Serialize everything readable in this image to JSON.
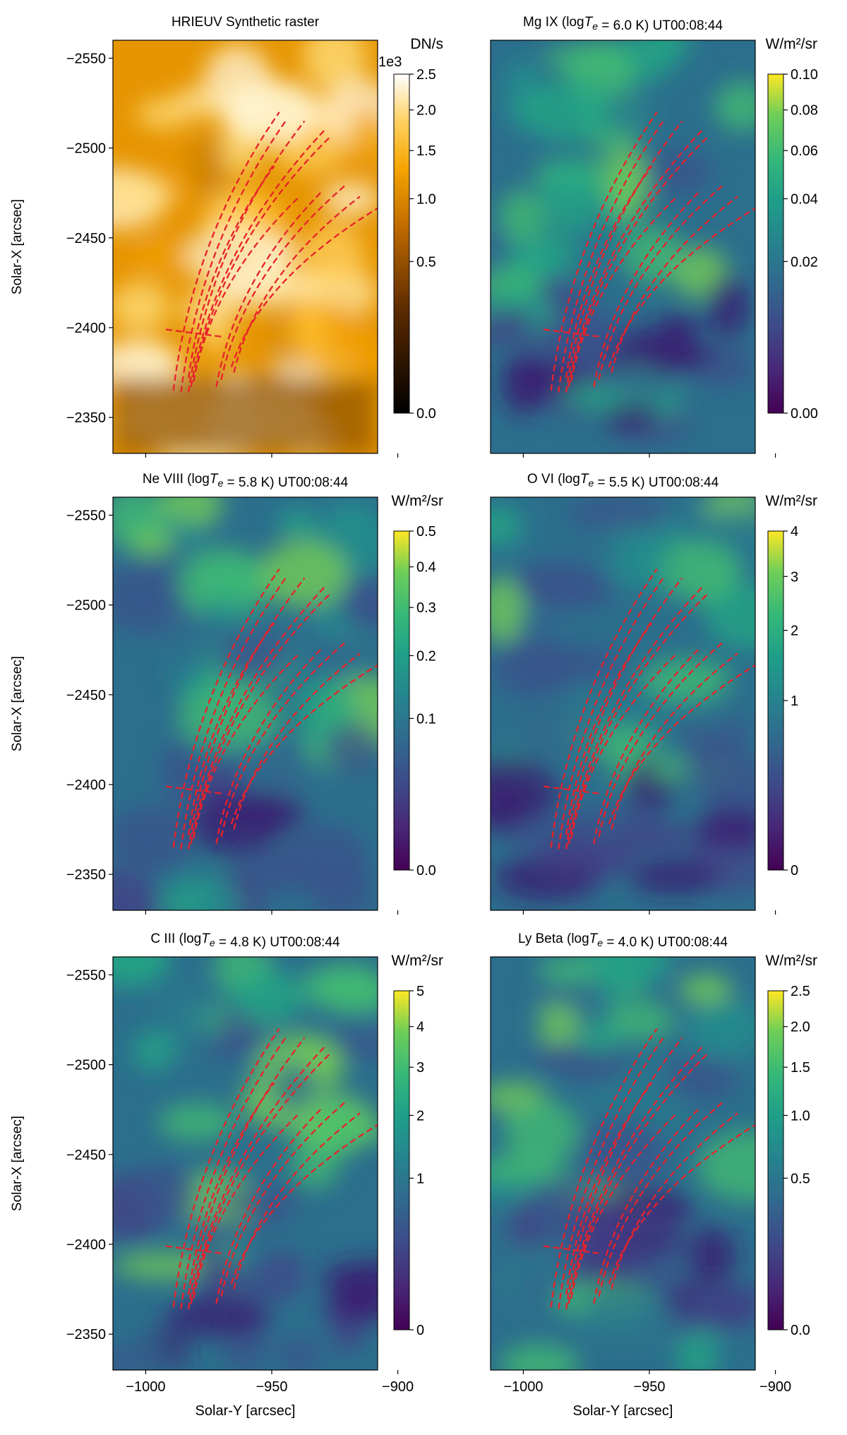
{
  "figure": {
    "shared_xlabel": "Solar-Y [arcsec]",
    "shared_ylabel": "Solar-X [arcsec]"
  },
  "chart_data": [
    {
      "type": "heatmap",
      "title": "HRIEUV Synthetic raster",
      "xlabel": "",
      "ylabel": "Solar-X [arcsec]",
      "xlim": [
        -1013,
        -908
      ],
      "ylim": [
        -2330,
        -2560
      ],
      "xticks": [],
      "yticks": [
        -2550,
        -2500,
        -2450,
        -2400,
        -2350
      ],
      "colormap": "afmhot",
      "colorbar": {
        "label": "DN/s",
        "offset_text": "1e3",
        "scale": "power",
        "ticks": [
          0.0,
          0.5,
          1.0,
          1.5,
          2.0,
          2.5
        ],
        "range": [
          0,
          2.5
        ]
      },
      "bright_regions": [
        {
          "x": -950,
          "y": -2520,
          "level": 0.95
        },
        {
          "x": -965,
          "y": -2440,
          "level": 0.75
        },
        {
          "x": -990,
          "y": -2355,
          "level": 0.55
        }
      ]
    },
    {
      "type": "heatmap",
      "title": "Mg IX (log$T_e$ = 6.0 K) UT00:08:44",
      "xlabel": "",
      "ylabel": "",
      "xlim": [
        -1013,
        -908
      ],
      "ylim": [
        -2330,
        -2560
      ],
      "xticks": [],
      "yticks": [],
      "colormap": "viridis",
      "colorbar": {
        "label": "W/m²/sr",
        "scale": "power",
        "ticks": [
          0.0,
          0.02,
          0.04,
          0.06,
          0.08,
          0.1
        ],
        "range": [
          0,
          0.1
        ]
      }
    },
    {
      "type": "heatmap",
      "title": "Ne VIII (log$T_e$ = 5.8 K) UT00:08:44",
      "xlabel": "",
      "ylabel": "Solar-X [arcsec]",
      "xlim": [
        -1013,
        -908
      ],
      "ylim": [
        -2330,
        -2560
      ],
      "xticks": [],
      "yticks": [
        -2550,
        -2500,
        -2450,
        -2400,
        -2350
      ],
      "colormap": "viridis",
      "colorbar": {
        "label": "W/m²/sr",
        "scale": "power",
        "ticks": [
          0.0,
          0.1,
          0.2,
          0.3,
          0.4,
          0.5
        ],
        "range": [
          0,
          0.5
        ]
      }
    },
    {
      "type": "heatmap",
      "title": "O VI (log$T_e$ = 5.5 K) UT00:08:44",
      "xlabel": "",
      "ylabel": "",
      "xlim": [
        -1013,
        -908
      ],
      "ylim": [
        -2330,
        -2560
      ],
      "xticks": [],
      "yticks": [],
      "colormap": "viridis",
      "colorbar": {
        "label": "W/m²/sr",
        "scale": "power",
        "ticks": [
          0.0,
          1.0,
          2.0,
          3.0,
          4.0
        ],
        "range": [
          0,
          4.0
        ]
      }
    },
    {
      "type": "heatmap",
      "title": "C III (log$T_e$ = 4.8 K) UT00:08:44",
      "xlabel": "Solar-Y [arcsec]",
      "ylabel": "Solar-X [arcsec]",
      "xlim": [
        -1013,
        -908
      ],
      "ylim": [
        -2330,
        -2560
      ],
      "xticks": [
        -1000,
        -950,
        -900
      ],
      "yticks": [
        -2550,
        -2500,
        -2450,
        -2400,
        -2350
      ],
      "colormap": "viridis",
      "colorbar": {
        "label": "W/m²/sr",
        "scale": "power",
        "ticks": [
          0,
          1,
          2,
          3,
          4,
          5
        ],
        "range": [
          0,
          5
        ]
      }
    },
    {
      "type": "heatmap",
      "title": "Ly Beta (log$T_e$ = 4.0 K) UT00:08:44",
      "xlabel": "Solar-Y [arcsec]",
      "ylabel": "",
      "xlim": [
        -1013,
        -908
      ],
      "ylim": [
        -2330,
        -2560
      ],
      "xticks": [
        -1000,
        -950,
        -900
      ],
      "yticks": [],
      "colormap": "viridis",
      "colorbar": {
        "label": "W/m²/sr",
        "scale": "power",
        "ticks": [
          0.0,
          0.5,
          1.0,
          1.5,
          2.0,
          2.5
        ],
        "range": [
          0,
          2.5
        ]
      }
    }
  ],
  "overlay": {
    "type": "dashed_line_traces",
    "color": "#e8222a",
    "loops": [
      {
        "start": [
          -989,
          -2365
        ],
        "end": [
          -947,
          -2520
        ]
      },
      {
        "start": [
          -986,
          -2364
        ],
        "end": [
          -944,
          -2516
        ]
      },
      {
        "start": [
          -983,
          -2364
        ],
        "end": [
          -937,
          -2515
        ]
      },
      {
        "start": [
          -982,
          -2367
        ],
        "end": [
          -929,
          -2510
        ]
      },
      {
        "start": [
          -981,
          -2370
        ],
        "end": [
          -927,
          -2506
        ]
      },
      {
        "start": [
          -983,
          -2372
        ],
        "end": [
          -949,
          -2490
        ]
      },
      {
        "start": [
          -981,
          -2370
        ],
        "end": [
          -939,
          -2473
        ]
      },
      {
        "start": [
          -972,
          -2367
        ],
        "end": [
          -930,
          -2476
        ]
      },
      {
        "start": [
          -970,
          -2371
        ],
        "end": [
          -921,
          -2479
        ]
      },
      {
        "start": [
          -965,
          -2375
        ],
        "end": [
          -915,
          -2473
        ]
      },
      {
        "start": [
          -966,
          -2378
        ],
        "end": [
          -900,
          -2473
        ]
      }
    ],
    "cross": {
      "center": [
        -981,
        -2399
      ],
      "arm_x": 11,
      "arm_y": 4
    }
  }
}
